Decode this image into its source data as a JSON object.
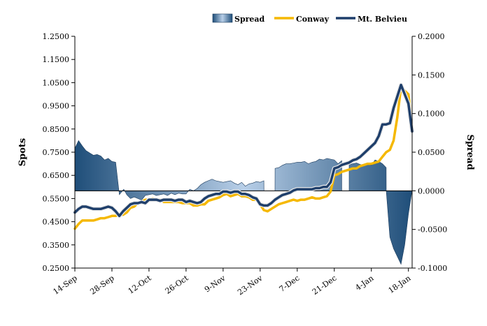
{
  "chart_data": {
    "type": "line",
    "title": "",
    "legend_position": "top-right",
    "grid": false,
    "x_ticks": [
      "14-Sep",
      "28-Sep",
      "12-Oct",
      "26-Oct",
      "9-Nov",
      "23-Nov",
      "7-Dec",
      "21-Dec",
      "4-Jan",
      "18-Jan"
    ],
    "x_tick_index": [
      0,
      10,
      20,
      30,
      40,
      50,
      60,
      70,
      80,
      90
    ],
    "x_count": 92,
    "y_left": {
      "label": "Spots",
      "range": [
        0.25,
        1.25
      ],
      "ticks": [
        "0.2500",
        "0.3500",
        "0.4500",
        "0.5500",
        "0.6500",
        "0.7500",
        "0.8500",
        "0.9500",
        "1.0500",
        "1.1500",
        "1.2500"
      ]
    },
    "y_right": {
      "label": "Spread",
      "range": [
        -0.1,
        0.2
      ],
      "ticks": [
        "-0.1000",
        "-0.0500",
        "0.0000",
        "0.0500",
        "0.1000",
        "0.1500",
        "0.2000"
      ]
    },
    "series": [
      {
        "name": "Spread",
        "kind": "area",
        "axis": "right",
        "color_light": "#c6d9f1",
        "color_dark": "#1f4e79",
        "x": [
          0,
          1,
          2,
          3,
          4,
          5,
          6,
          7,
          8,
          9,
          10,
          11,
          12,
          13,
          13.2,
          14,
          15,
          16,
          17,
          18,
          19,
          20,
          21,
          22,
          23,
          24,
          25,
          26,
          27,
          28,
          29,
          30,
          31,
          32,
          33,
          34,
          35,
          36,
          37,
          38,
          39,
          40,
          41,
          42,
          43,
          44,
          45,
          46,
          47,
          48,
          49,
          50,
          51,
          51.01,
          54,
          54.01,
          55,
          56,
          57,
          58,
          59,
          60,
          61,
          62,
          63,
          64,
          65,
          66,
          67,
          68,
          69,
          70,
          71,
          72,
          72.01,
          74,
          74.01,
          75,
          76,
          77,
          78,
          79,
          80,
          81,
          82,
          83,
          84,
          84.01,
          85,
          86,
          87,
          88,
          89,
          90,
          91
        ],
        "y": [
          0.055,
          0.065,
          0.058,
          0.052,
          0.049,
          0.046,
          0.047,
          0.045,
          0.04,
          0.042,
          0.038,
          0.037,
          -0.005,
          0.001,
          0.002,
          -0.005,
          -0.01,
          -0.008,
          -0.01,
          -0.012,
          -0.006,
          -0.005,
          -0.004,
          -0.006,
          -0.005,
          -0.004,
          -0.006,
          -0.003,
          -0.005,
          -0.003,
          -0.004,
          -0.004,
          0.002,
          0.0,
          0.003,
          0.008,
          0.011,
          0.013,
          0.015,
          0.013,
          0.012,
          0.011,
          0.012,
          0.013,
          0.01,
          0.008,
          0.011,
          0.006,
          0.009,
          0.01,
          0.012,
          0.011,
          0.013,
          0.0,
          0.0,
          0.029,
          0.03,
          0.033,
          0.035,
          0.035,
          0.036,
          0.037,
          0.037,
          0.038,
          0.035,
          0.037,
          0.038,
          0.041,
          0.04,
          0.042,
          0.041,
          0.04,
          0.035,
          0.039,
          0.0,
          0.0,
          0.034,
          0.035,
          0.036,
          0.034,
          0.033,
          0.036,
          0.033,
          0.04,
          0.038,
          0.035,
          0.03,
          0.0,
          -0.06,
          -0.075,
          -0.085,
          -0.095,
          -0.07,
          -0.03,
          0.001
        ]
      },
      {
        "name": "Conway",
        "kind": "line",
        "axis": "left",
        "color": "#f5b800",
        "y": [
          0.42,
          0.44,
          0.455,
          0.455,
          0.455,
          0.455,
          0.46,
          0.465,
          0.465,
          0.47,
          0.475,
          0.475,
          0.48,
          0.48,
          0.49,
          0.51,
          0.515,
          0.53,
          0.535,
          0.545,
          0.545,
          0.55,
          0.545,
          0.545,
          0.535,
          0.535,
          0.535,
          0.535,
          0.535,
          0.53,
          0.53,
          0.53,
          0.52,
          0.52,
          0.525,
          0.525,
          0.54,
          0.545,
          0.55,
          0.555,
          0.565,
          0.57,
          0.56,
          0.565,
          0.57,
          0.56,
          0.56,
          0.555,
          0.545,
          0.545,
          0.525,
          0.5,
          0.495,
          0.505,
          0.515,
          0.525,
          0.53,
          0.535,
          0.54,
          0.545,
          0.54,
          0.545,
          0.545,
          0.55,
          0.555,
          0.55,
          0.55,
          0.555,
          0.56,
          0.58,
          0.65,
          0.655,
          0.665,
          0.67,
          0.675,
          0.68,
          0.68,
          0.69,
          0.695,
          0.7,
          0.7,
          0.705,
          0.71,
          0.73,
          0.75,
          0.76,
          0.8,
          0.9,
          1.03,
          1.015,
          1.0,
          0.86
        ]
      },
      {
        "name": "Mt. Belvieu",
        "kind": "line",
        "axis": "left",
        "color": "#1f3f6b",
        "y": [
          0.49,
          0.505,
          0.515,
          0.515,
          0.51,
          0.505,
          0.505,
          0.505,
          0.51,
          0.515,
          0.51,
          0.495,
          0.475,
          0.495,
          0.51,
          0.525,
          0.53,
          0.53,
          0.535,
          0.53,
          0.545,
          0.545,
          0.545,
          0.54,
          0.545,
          0.545,
          0.545,
          0.54,
          0.545,
          0.545,
          0.535,
          0.54,
          0.535,
          0.53,
          0.535,
          0.55,
          0.56,
          0.565,
          0.57,
          0.57,
          0.58,
          0.58,
          0.575,
          0.58,
          0.58,
          0.57,
          0.57,
          0.565,
          0.555,
          0.55,
          0.525,
          0.52,
          0.52,
          0.53,
          0.545,
          0.555,
          0.565,
          0.57,
          0.575,
          0.585,
          0.59,
          0.59,
          0.59,
          0.59,
          0.59,
          0.595,
          0.595,
          0.6,
          0.6,
          0.62,
          0.68,
          0.685,
          0.695,
          0.7,
          0.705,
          0.715,
          0.72,
          0.73,
          0.745,
          0.76,
          0.775,
          0.79,
          0.82,
          0.87,
          0.87,
          0.875,
          0.94,
          0.99,
          1.04,
          1.0,
          0.96,
          0.84
        ]
      }
    ]
  }
}
